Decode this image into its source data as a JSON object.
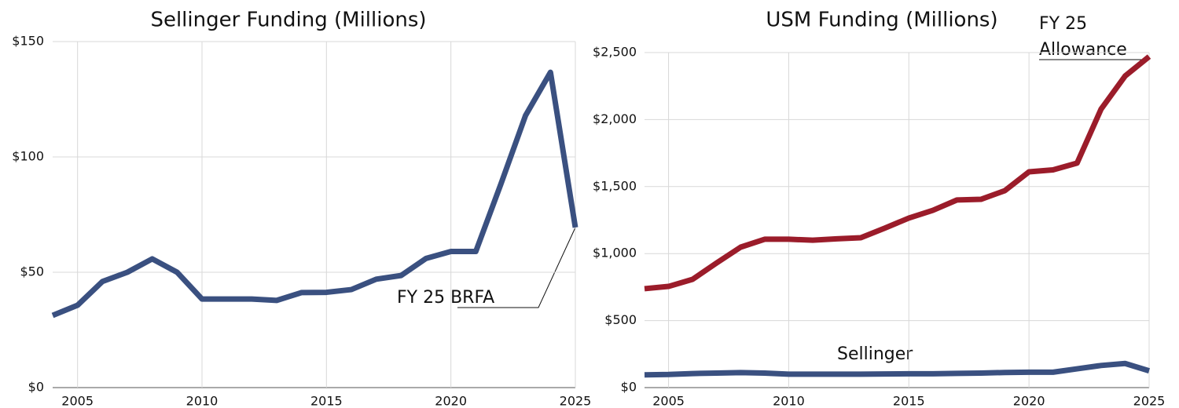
{
  "chart_data": [
    {
      "type": "line",
      "title": "Sellinger Funding (Millions)",
      "x": [
        2004,
        2005,
        2006,
        2007,
        2008,
        2009,
        2010,
        2011,
        2012,
        2013,
        2014,
        2015,
        2016,
        2017,
        2018,
        2019,
        2020,
        2021,
        2022,
        2023,
        2024,
        2025
      ],
      "series": [
        {
          "color": "#3a5080",
          "values": [
            31.3,
            35.7,
            46,
            50,
            55.8,
            50,
            38.4,
            38.4,
            38.4,
            37.8,
            41.2,
            41.3,
            42.5,
            47,
            48.6,
            56,
            59,
            59,
            88,
            118,
            136.7,
            69.4
          ]
        }
      ],
      "xlim": [
        2004,
        2025
      ],
      "xticks": [
        2005,
        2010,
        2015,
        2020,
        2025
      ],
      "ylim": [
        0,
        150
      ],
      "yticks": [
        {
          "value": 0,
          "label": "$0"
        },
        {
          "value": 50,
          "label": "$50"
        },
        {
          "value": 100,
          "label": "$100"
        },
        {
          "value": 150,
          "label": "$150"
        }
      ],
      "grid": true,
      "annotation": [
        "FY 25 BRFA"
      ]
    },
    {
      "type": "line",
      "title": "USM Funding (Millions)",
      "x": [
        2004,
        2005,
        2006,
        2007,
        2008,
        2009,
        2010,
        2011,
        2012,
        2013,
        2014,
        2015,
        2016,
        2017,
        2018,
        2019,
        2020,
        2021,
        2022,
        2023,
        2024,
        2025
      ],
      "series": [
        {
          "color": "#9b1c2a",
          "values": [
            738,
            755,
            808,
            930,
            1048,
            1107,
            1107,
            1100,
            1110,
            1118,
            1190,
            1265,
            1323,
            1400,
            1405,
            1470,
            1610,
            1625,
            1675,
            2078,
            2325,
            2470
          ]
        },
        {
          "name": "Sellinger",
          "color": "#3a5080",
          "values": [
            95,
            98,
            105,
            108,
            112,
            108,
            100,
            100,
            100,
            100,
            102,
            103,
            103,
            106,
            108,
            113,
            115,
            115,
            140,
            165,
            180,
            125
          ]
        }
      ],
      "xlim": [
        2004,
        2025
      ],
      "xticks": [
        2005,
        2010,
        2015,
        2020,
        2025
      ],
      "ylim": [
        0,
        2500
      ],
      "yticks": [
        {
          "value": 0,
          "label": "$0"
        },
        {
          "value": 500,
          "label": "$500"
        },
        {
          "value": 1000,
          "label": "$1,000"
        },
        {
          "value": 1500,
          "label": "$1,500"
        },
        {
          "value": 2000,
          "label": "$2,000"
        },
        {
          "value": 2500,
          "label": "$2,500"
        }
      ],
      "grid": true,
      "annotation": [
        "FY 25",
        "Allowance"
      ]
    }
  ]
}
